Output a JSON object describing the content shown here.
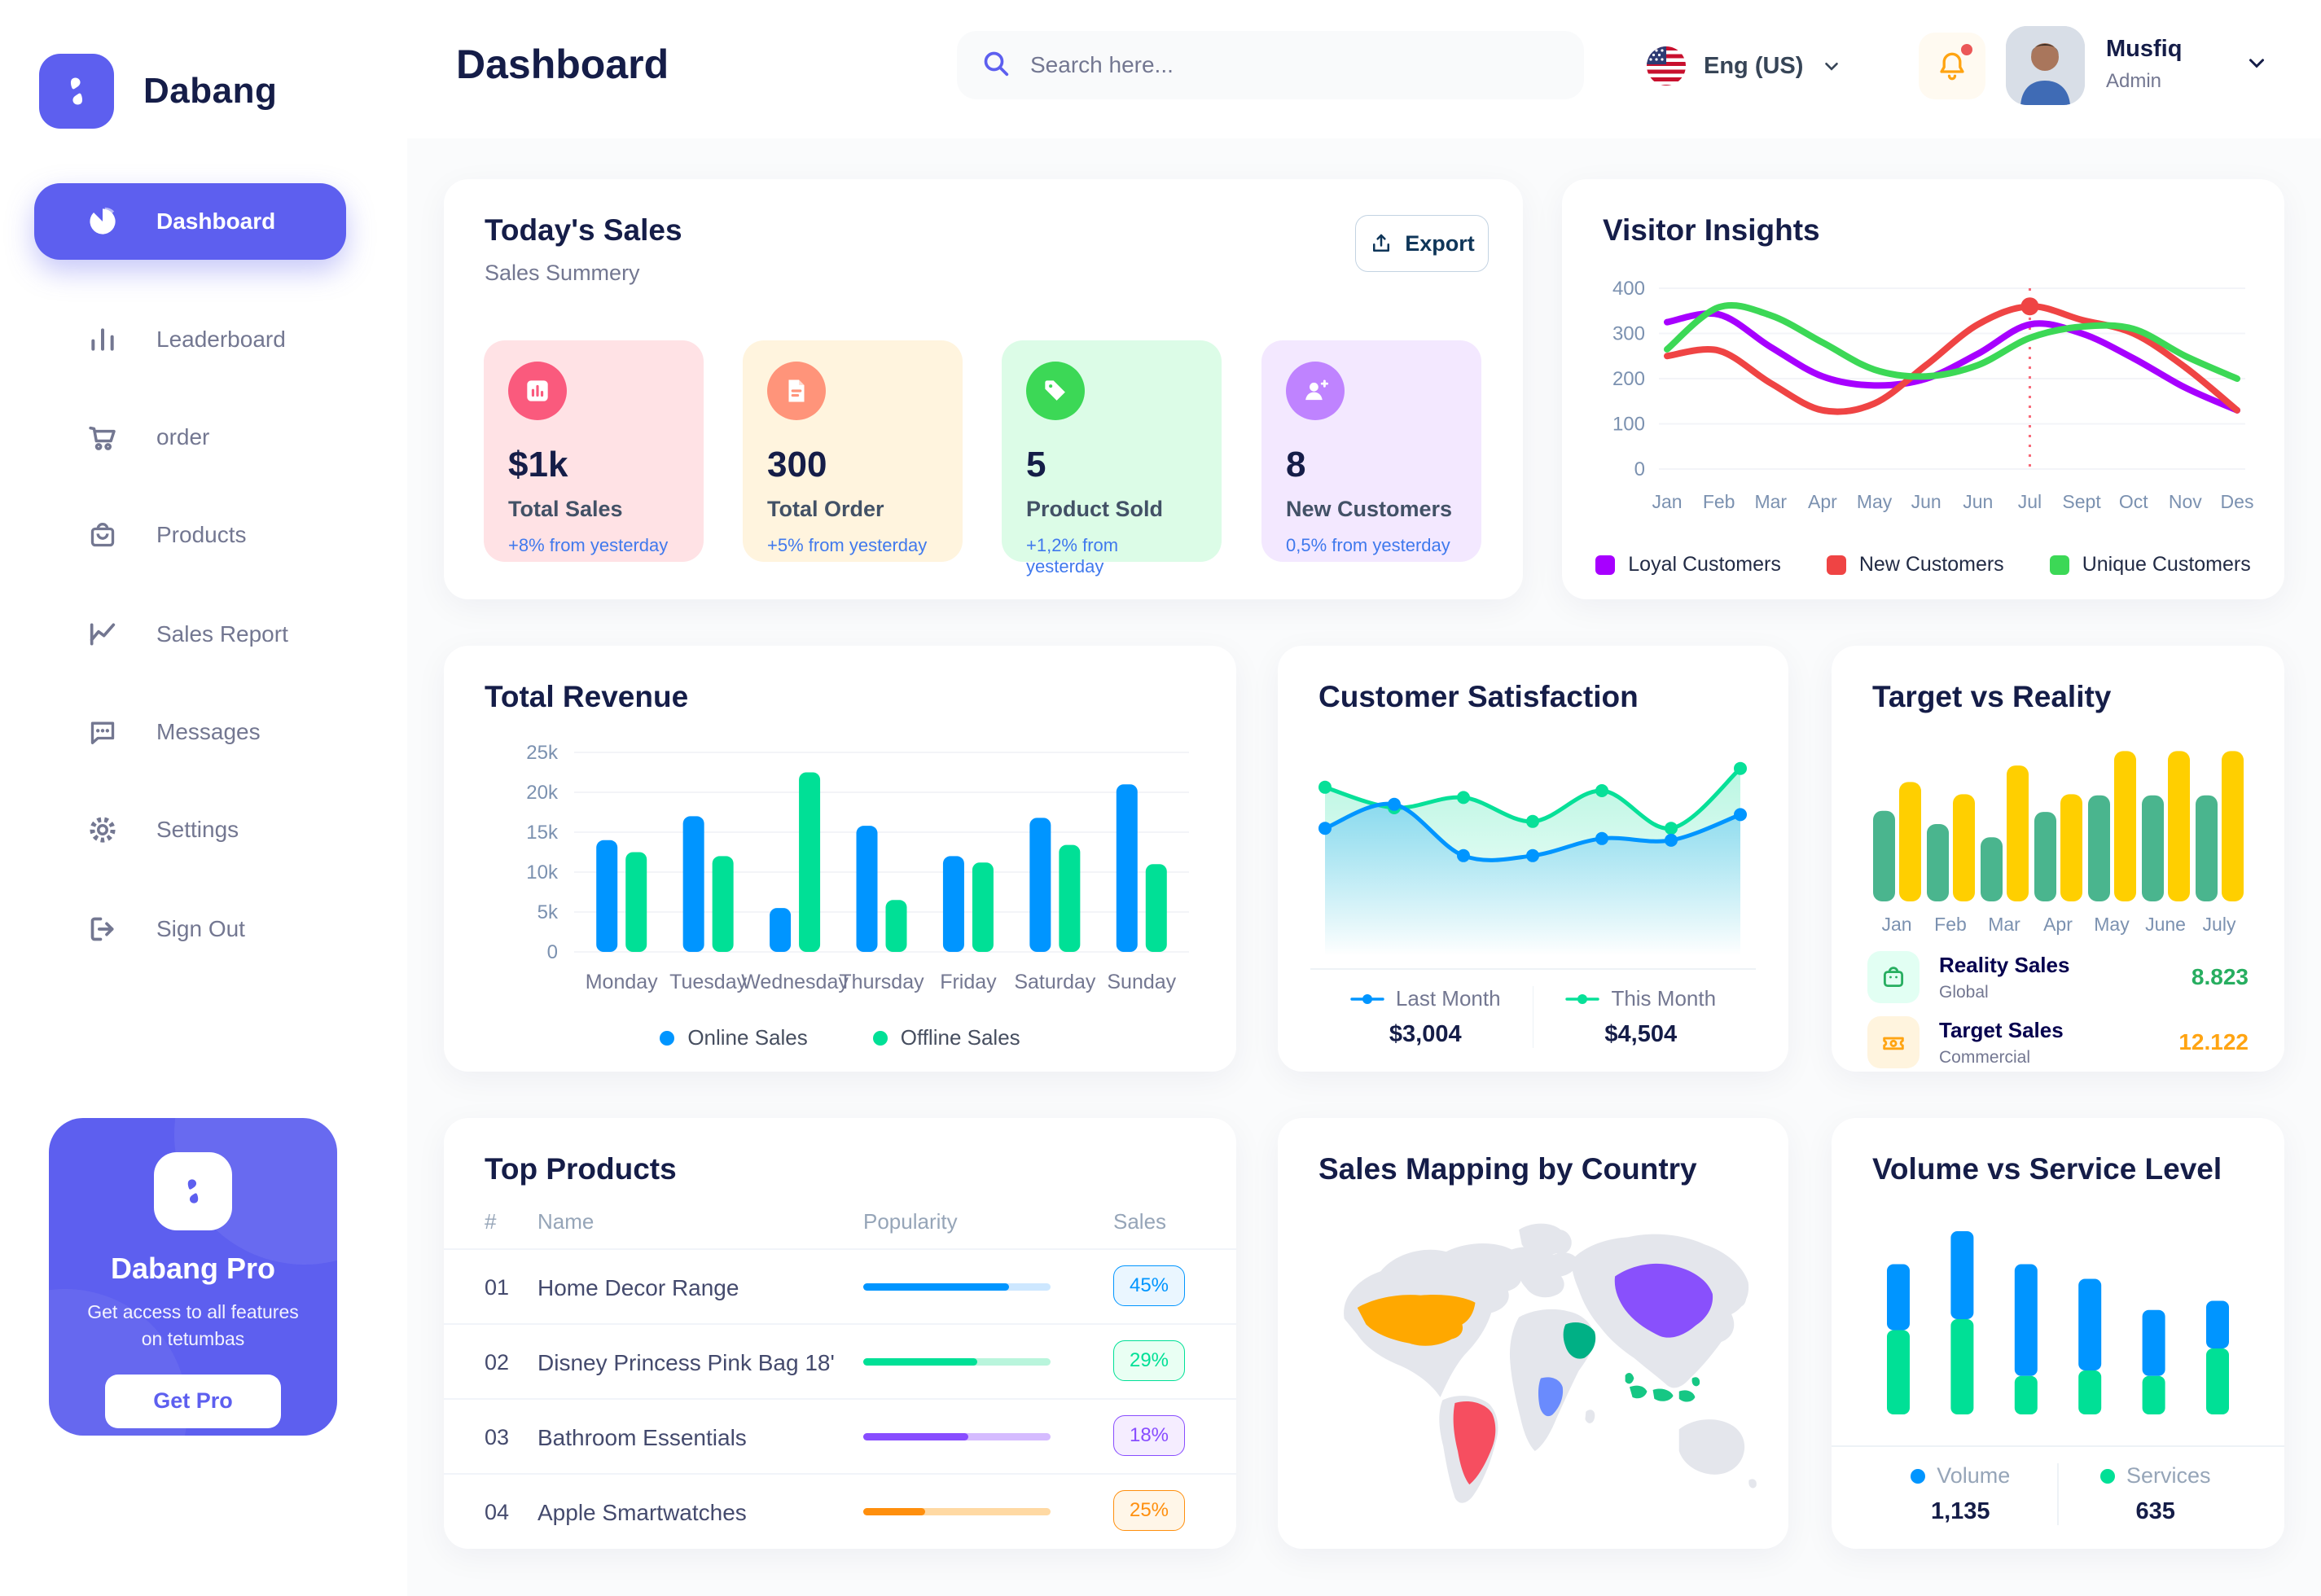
{
  "brand": {
    "name": "Dabang"
  },
  "palette": {
    "primary": "#5D5FEF",
    "title": "#151D48",
    "muted": "#737791",
    "online_blue": "#0095FF",
    "offline_green": "#00E096",
    "link_blue": "#4079ED"
  },
  "sidebar": {
    "items": [
      {
        "label": "Dashboard",
        "active": true
      },
      {
        "label": "Leaderboard"
      },
      {
        "label": "order"
      },
      {
        "label": "Products"
      },
      {
        "label": "Sales Report"
      },
      {
        "label": "Messages"
      },
      {
        "label": "Settings"
      },
      {
        "label": "Sign Out"
      }
    ],
    "pro": {
      "title": "Dabang Pro",
      "desc": "Get access to all features on tetumbas",
      "cta": "Get Pro"
    }
  },
  "header": {
    "title": "Dashboard",
    "search_placeholder": "Search here...",
    "language": "Eng (US)",
    "user": {
      "name": "Musfiq",
      "role": "Admin"
    }
  },
  "today_sales": {
    "title": "Today's Sales",
    "subtitle": "Sales Summery",
    "export_label": "Export",
    "cards": [
      {
        "value": "$1k",
        "label": "Total Sales",
        "delta": "+8% from yesterday"
      },
      {
        "value": "300",
        "label": "Total Order",
        "delta": "+5% from yesterday"
      },
      {
        "value": "5",
        "label": "Product Sold",
        "delta": "+1,2% from yesterday"
      },
      {
        "value": "8",
        "label": "New Customers",
        "delta": "0,5% from yesterday"
      }
    ]
  },
  "chart_data": {
    "visitor_insights": {
      "type": "line",
      "title": "Visitor Insights",
      "x": [
        "Jan",
        "Feb",
        "Mar",
        "Apr",
        "May",
        "Jun",
        "Jun",
        "Jul",
        "Sept",
        "Oct",
        "Nov",
        "Des"
      ],
      "ylim": [
        0,
        400
      ],
      "yticks": [
        0,
        100,
        200,
        300,
        400
      ],
      "series": [
        {
          "name": "Loyal Customers",
          "color": "#A700FF",
          "values": [
            325,
            342,
            270,
            205,
            185,
            200,
            255,
            320,
            300,
            245,
            180,
            130
          ]
        },
        {
          "name": "New Customers",
          "color": "#EF4444",
          "values": [
            250,
            262,
            190,
            130,
            145,
            230,
            320,
            360,
            330,
            300,
            225,
            130
          ]
        },
        {
          "name": "Unique Customers",
          "color": "#3CD856",
          "values": [
            265,
            358,
            340,
            280,
            220,
            205,
            230,
            290,
            315,
            310,
            250,
            200
          ]
        }
      ],
      "marker": {
        "series": 1,
        "index": 7
      }
    },
    "total_revenue": {
      "type": "bar",
      "title": "Total Revenue",
      "categories": [
        "Monday",
        "Tuesday",
        "Wednesday",
        "Thursday",
        "Friday",
        "Saturday",
        "Sunday"
      ],
      "ylim": [
        0,
        25
      ],
      "ytick_labels": [
        "0",
        "5k",
        "10k",
        "15k",
        "20k",
        "25k"
      ],
      "series": [
        {
          "name": "Online Sales",
          "color": "#0095FF",
          "values": [
            14,
            17,
            5.5,
            15.8,
            12,
            16.8,
            21
          ]
        },
        {
          "name": "Offline Sales",
          "color": "#00E096",
          "values": [
            12.5,
            12,
            22.5,
            6.5,
            11.2,
            13.4,
            11
          ]
        }
      ],
      "legend_position": "bottom"
    },
    "customer_satisfaction": {
      "type": "area",
      "title": "Customer Satisfaction",
      "series": [
        {
          "name": "Last Month",
          "color": "#0095FF",
          "total": "$3,004",
          "values": [
            58,
            72,
            42,
            42,
            52,
            51,
            66
          ]
        },
        {
          "name": "This Month",
          "color": "#07E098",
          "total": "$4,504",
          "values": [
            82,
            70,
            76,
            62,
            80,
            58,
            93
          ]
        }
      ]
    },
    "target_vs_reality": {
      "type": "bar",
      "title": "Target vs Reality",
      "categories": [
        "Jan",
        "Feb",
        "Mar",
        "Apr",
        "May",
        "June",
        "July"
      ],
      "series": [
        {
          "name": "Reality Sales",
          "color": "#4AB58E",
          "values": [
            8.2,
            7,
            5.8,
            8.1,
            9.6,
            9.6,
            9.6
          ]
        },
        {
          "name": "Target Sales",
          "color": "#FFCF00",
          "values": [
            10.8,
            9.7,
            12.3,
            9.7,
            13.6,
            13.6,
            13.6
          ]
        }
      ],
      "legend": [
        {
          "label": "Reality Sales",
          "sub": "Global",
          "value": "8.823",
          "value_color": "#27AE60",
          "icon_bg": "#E2FFF3"
        },
        {
          "label": "Target Sales",
          "sub": "Commercial",
          "value": "12.122",
          "value_color": "#FFA412",
          "icon_bg": "#FFF4DE"
        }
      ]
    },
    "volume_service": {
      "type": "stacked-bar",
      "title": "Volume vs Service Level",
      "series": [
        {
          "name": "Volume",
          "color": "#0095FF",
          "total": "1,135",
          "values": [
            36,
            48,
            61,
            50,
            36,
            26
          ]
        },
        {
          "name": "Services",
          "color": "#00E096",
          "total": "635",
          "values": [
            46,
            52,
            21,
            24,
            21,
            36
          ]
        }
      ]
    }
  },
  "top_products": {
    "title": "Top Products",
    "headers": [
      "#",
      "Name",
      "Popularity",
      "Sales"
    ],
    "rows": [
      {
        "num": "01",
        "name": "Home Decor Range",
        "popularity": 78,
        "sales": "45%",
        "color": "#0095FF",
        "track": "#CDE7FF",
        "badge_bg": "#EAF6FF"
      },
      {
        "num": "02",
        "name": "Disney Princess Pink Bag 18'",
        "popularity": 61,
        "sales": "29%",
        "color": "#00E096",
        "track": "#B9F5DC",
        "badge_bg": "#E9FFF3"
      },
      {
        "num": "03",
        "name": "Bathroom Essentials",
        "popularity": 56,
        "sales": "18%",
        "color": "#884DFF",
        "track": "#D5BBFF",
        "badge_bg": "#F5EDFF"
      },
      {
        "num": "04",
        "name": "Apple Smartwatches",
        "popularity": 33,
        "sales": "25%",
        "color": "#FF8F0D",
        "track": "#FFD9A3",
        "badge_bg": "#FFF6E8"
      }
    ]
  },
  "sales_map": {
    "title": "Sales Mapping by Country",
    "colors": {
      "land": "#E4E6EC",
      "usa": "#FFA800",
      "brazil": "#F64E60",
      "saudi": "#00B085",
      "congo": "#6A8BFD",
      "china": "#8950FC",
      "indonesia": "#16C784"
    }
  }
}
